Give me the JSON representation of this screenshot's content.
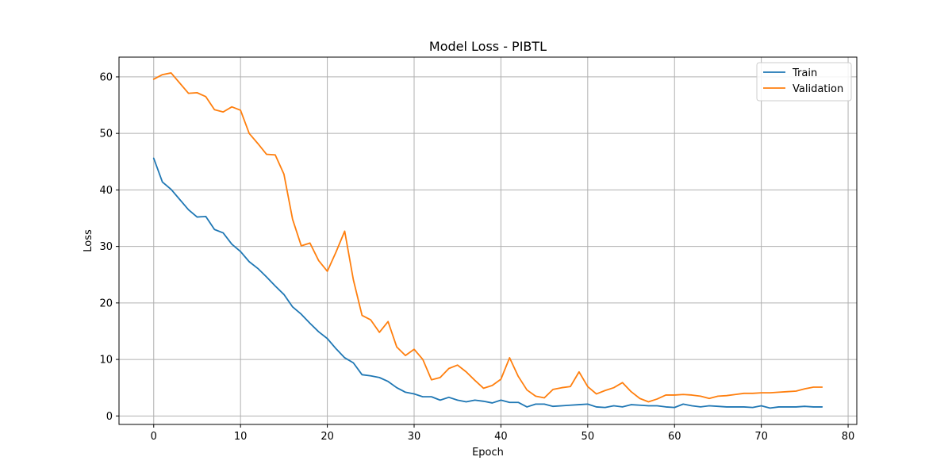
{
  "chart_data": {
    "type": "line",
    "title": "Model Loss - PIBTL",
    "xlabel": "Epoch",
    "ylabel": "Loss",
    "xlim": [
      -4,
      81
    ],
    "ylim": [
      -1.5,
      63.5
    ],
    "xticks": [
      0,
      10,
      20,
      30,
      40,
      50,
      60,
      70,
      80
    ],
    "yticks": [
      0,
      10,
      20,
      30,
      40,
      50,
      60
    ],
    "grid": true,
    "legend": "top-right",
    "x": [
      0,
      1,
      2,
      3,
      4,
      5,
      6,
      7,
      8,
      9,
      10,
      11,
      12,
      13,
      14,
      15,
      16,
      17,
      18,
      19,
      20,
      21,
      22,
      23,
      24,
      25,
      26,
      27,
      28,
      29,
      30,
      31,
      32,
      33,
      34,
      35,
      36,
      37,
      38,
      39,
      40,
      41,
      42,
      43,
      44,
      45,
      46,
      47,
      48,
      49,
      50,
      51,
      52,
      53,
      54,
      55,
      56,
      57,
      58,
      59,
      60,
      61,
      62,
      63,
      64,
      65,
      66,
      67,
      68,
      69,
      70,
      71,
      72,
      73,
      74,
      75,
      76,
      77
    ],
    "series": [
      {
        "name": "Train",
        "color": "#1f77b4",
        "values": [
          45.6,
          41.4,
          40.1,
          38.3,
          36.5,
          35.2,
          35.3,
          33.0,
          32.4,
          30.4,
          29.1,
          27.3,
          26.1,
          24.6,
          23.0,
          21.5,
          19.3,
          18.0,
          16.4,
          14.9,
          13.7,
          11.9,
          10.3,
          9.4,
          7.3,
          7.1,
          6.8,
          6.1,
          5.0,
          4.2,
          3.9,
          3.4,
          3.4,
          2.8,
          3.3,
          2.8,
          2.5,
          2.8,
          2.6,
          2.3,
          2.8,
          2.4,
          2.4,
          1.6,
          2.1,
          2.1,
          1.7,
          1.8,
          1.9,
          2.0,
          2.1,
          1.6,
          1.5,
          1.8,
          1.6,
          2.0,
          1.9,
          1.8,
          1.8,
          1.6,
          1.5,
          2.1,
          1.8,
          1.6,
          1.8,
          1.7,
          1.6,
          1.6,
          1.6,
          1.5,
          1.8,
          1.4,
          1.6,
          1.6,
          1.6,
          1.7,
          1.6,
          1.6
        ]
      },
      {
        "name": "Validation",
        "color": "#ff7f0e",
        "values": [
          59.6,
          60.4,
          60.7,
          58.9,
          57.1,
          57.2,
          56.5,
          54.2,
          53.8,
          54.7,
          54.1,
          50.0,
          48.2,
          46.3,
          46.2,
          42.8,
          34.8,
          30.1,
          30.6,
          27.5,
          25.6,
          29.0,
          32.7,
          24.1,
          17.8,
          17.0,
          14.8,
          16.7,
          12.2,
          10.7,
          11.8,
          10.0,
          6.4,
          6.8,
          8.4,
          9.0,
          7.8,
          6.3,
          4.9,
          5.4,
          6.5,
          10.3,
          7.0,
          4.6,
          3.5,
          3.2,
          4.7,
          5.0,
          5.2,
          7.8,
          5.2,
          3.9,
          4.5,
          5.0,
          5.9,
          4.3,
          3.1,
          2.5,
          3.0,
          3.7,
          3.7,
          3.8,
          3.7,
          3.5,
          3.1,
          3.5,
          3.6,
          3.8,
          4.0,
          4.0,
          4.1,
          4.1,
          4.2,
          4.3,
          4.4,
          4.8,
          5.1,
          5.1
        ]
      }
    ]
  }
}
